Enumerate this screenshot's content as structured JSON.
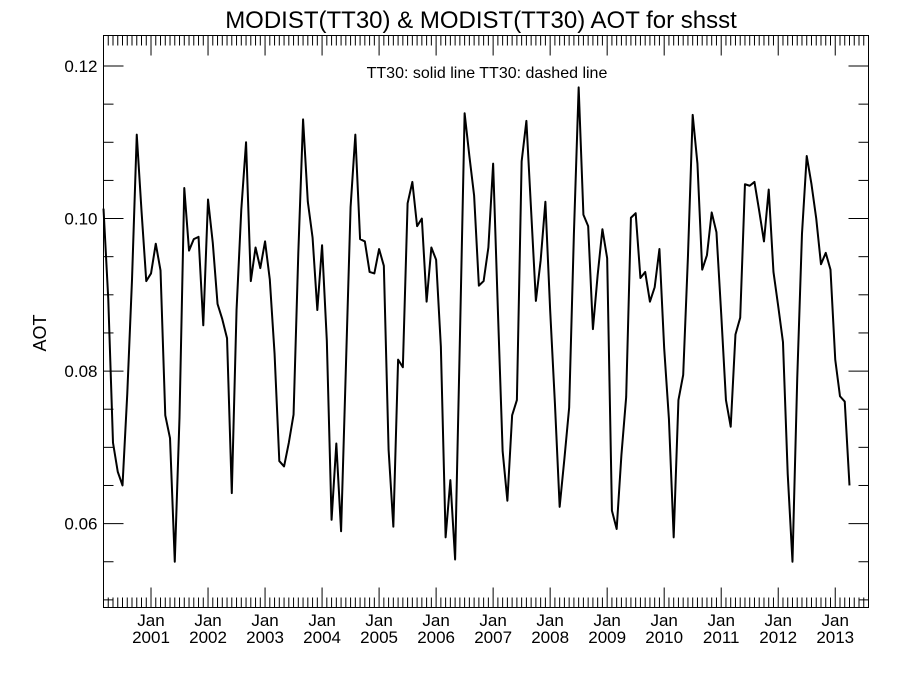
{
  "chart_data": {
    "type": "line",
    "title": "MODIST(TT30) & MODIST(TT30)  AOT for shsst",
    "legend_text": "TT30: solid line   TT30: dashed line",
    "xlabel": "",
    "ylabel": "AOT",
    "grid": false,
    "xlim": [
      "2000-03",
      "2013-08"
    ],
    "ylim": [
      0.049,
      0.124
    ],
    "y_major_ticks": [
      0.06,
      0.08,
      0.1,
      0.12
    ],
    "y_tick_labels": [
      "0.06",
      "0.08",
      "0.10",
      "0.12"
    ],
    "y_minor_step": 0.005,
    "x_tick_months": [
      "2001-01",
      "2002-01",
      "2003-01",
      "2004-01",
      "2005-01",
      "2006-01",
      "2007-01",
      "2008-01",
      "2009-01",
      "2010-01",
      "2011-01",
      "2012-01",
      "2013-01"
    ],
    "x_tick_labels": [
      {
        "month": "Jan",
        "year": "2001"
      },
      {
        "month": "Jan",
        "year": "2002"
      },
      {
        "month": "Jan",
        "year": "2003"
      },
      {
        "month": "Jan",
        "year": "2004"
      },
      {
        "month": "Jan",
        "year": "2005"
      },
      {
        "month": "Jan",
        "year": "2006"
      },
      {
        "month": "Jan",
        "year": "2007"
      },
      {
        "month": "Jan",
        "year": "2008"
      },
      {
        "month": "Jan",
        "year": "2009"
      },
      {
        "month": "Jan",
        "year": "2010"
      },
      {
        "month": "Jan",
        "year": "2011"
      },
      {
        "month": "Jan",
        "year": "2012"
      },
      {
        "month": "Jan",
        "year": "2013"
      }
    ],
    "series": [
      {
        "style": "solid",
        "color": "#000000",
        "start": "2000-03",
        "values": [
          0.1013,
          0.0895,
          0.0706,
          0.0668,
          0.065,
          0.077,
          0.092,
          0.111,
          0.101,
          0.0918,
          0.0928,
          0.0967,
          0.0932,
          0.0742,
          0.0712,
          0.055,
          0.074,
          0.104,
          0.0958,
          0.0973,
          0.0976,
          0.086,
          0.1025,
          0.0968,
          0.0888,
          0.0868,
          0.0843,
          0.064,
          0.088,
          0.1012,
          0.11,
          0.0918,
          0.0962,
          0.0935,
          0.097,
          0.092,
          0.0823,
          0.0682,
          0.0675,
          0.0706,
          0.0743,
          0.0955,
          0.113,
          0.1022,
          0.0975,
          0.088,
          0.0965,
          0.084,
          0.0605,
          0.0705,
          0.059,
          0.0802,
          0.1015,
          0.111,
          0.0973,
          0.097,
          0.093,
          0.0928,
          0.096,
          0.0938,
          0.0697,
          0.0596,
          0.0815,
          0.0805,
          0.102,
          0.1048,
          0.099,
          0.1,
          0.0891,
          0.0962,
          0.0946,
          0.0832,
          0.0582,
          0.0657,
          0.0553,
          0.084,
          0.1138,
          0.1082,
          0.103,
          0.0912,
          0.0918,
          0.0962,
          0.1072,
          0.088,
          0.0695,
          0.063,
          0.0742,
          0.0762,
          0.1075,
          0.1128,
          0.101,
          0.0892,
          0.0945,
          0.1022,
          0.088,
          0.0758,
          0.0622,
          0.0685,
          0.0752,
          0.098,
          0.1172,
          0.1005,
          0.099,
          0.0855,
          0.0926,
          0.0986,
          0.0948,
          0.0617,
          0.0593,
          0.069,
          0.0766,
          0.1001,
          0.1007,
          0.0922,
          0.093,
          0.0891,
          0.091,
          0.096,
          0.083,
          0.0737,
          0.0582,
          0.0762,
          0.0795,
          0.095,
          0.1136,
          0.1072,
          0.0933,
          0.0952,
          0.1008,
          0.0982,
          0.0875,
          0.0762,
          0.0727,
          0.0848,
          0.087,
          0.1045,
          0.1043,
          0.1048,
          0.101,
          0.097,
          0.1038,
          0.093,
          0.0885,
          0.0838,
          0.0665,
          0.055,
          0.079,
          0.098,
          0.1082,
          0.1045,
          0.1,
          0.094,
          0.0955,
          0.0933,
          0.0815,
          0.0767,
          0.076,
          0.065
        ]
      }
    ]
  }
}
